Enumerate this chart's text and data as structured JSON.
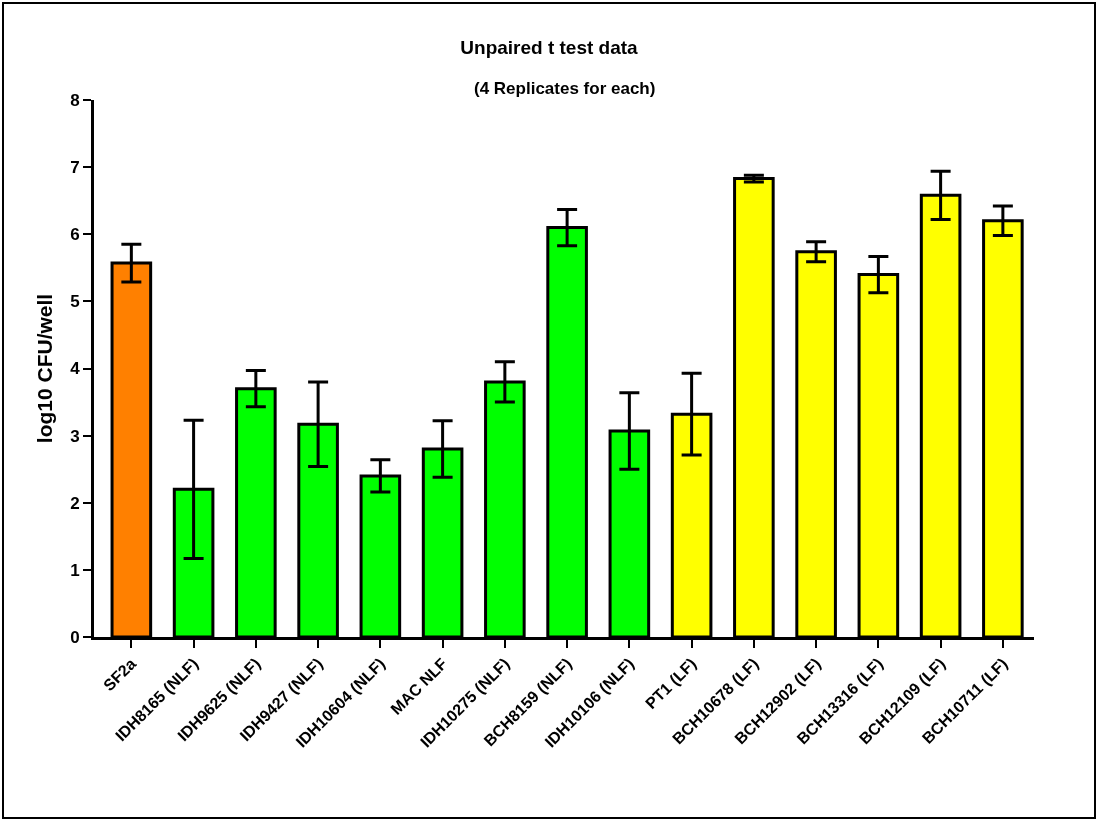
{
  "chart_data": {
    "type": "bar",
    "title": "Unpaired t test data",
    "subtitle": "(4 Replicates for each)",
    "ylabel": "log10 CFU/well",
    "categories": [
      "SF2a",
      "IDH8165 (NLF)",
      "IDH9625 (NLF)",
      "IDH9427 (NLF)",
      "IDH10604 (NLF)",
      "MAC NLF",
      "IDH10275 (NLF)",
      "BCH8159 (NLF)",
      "IDH10106 (NLF)",
      "PT1 (LF)",
      "BCH10678 (LF)",
      "BCH12902 (LF)",
      "BCH13316 (LF)",
      "BCH12109 (LF)",
      "BCH10711 (LF)"
    ],
    "values": [
      5.57,
      2.2,
      3.7,
      3.17,
      2.4,
      2.8,
      3.8,
      6.1,
      3.07,
      3.32,
      6.83,
      5.74,
      5.4,
      6.58,
      6.2
    ],
    "errors": [
      0.28,
      1.03,
      0.27,
      0.63,
      0.24,
      0.42,
      0.3,
      0.27,
      0.57,
      0.61,
      0.05,
      0.15,
      0.27,
      0.36,
      0.22
    ],
    "colors": [
      "#ff8000",
      "#00ff00",
      "#00ff00",
      "#00ff00",
      "#00ff00",
      "#00ff00",
      "#00ff00",
      "#00ff00",
      "#00ff00",
      "#ffff00",
      "#ffff00",
      "#ffff00",
      "#ffff00",
      "#ffff00",
      "#ffff00"
    ],
    "ylim": [
      0,
      8
    ],
    "yticks": [
      0,
      1,
      2,
      3,
      4,
      5,
      6,
      7,
      8
    ],
    "grid": false
  }
}
